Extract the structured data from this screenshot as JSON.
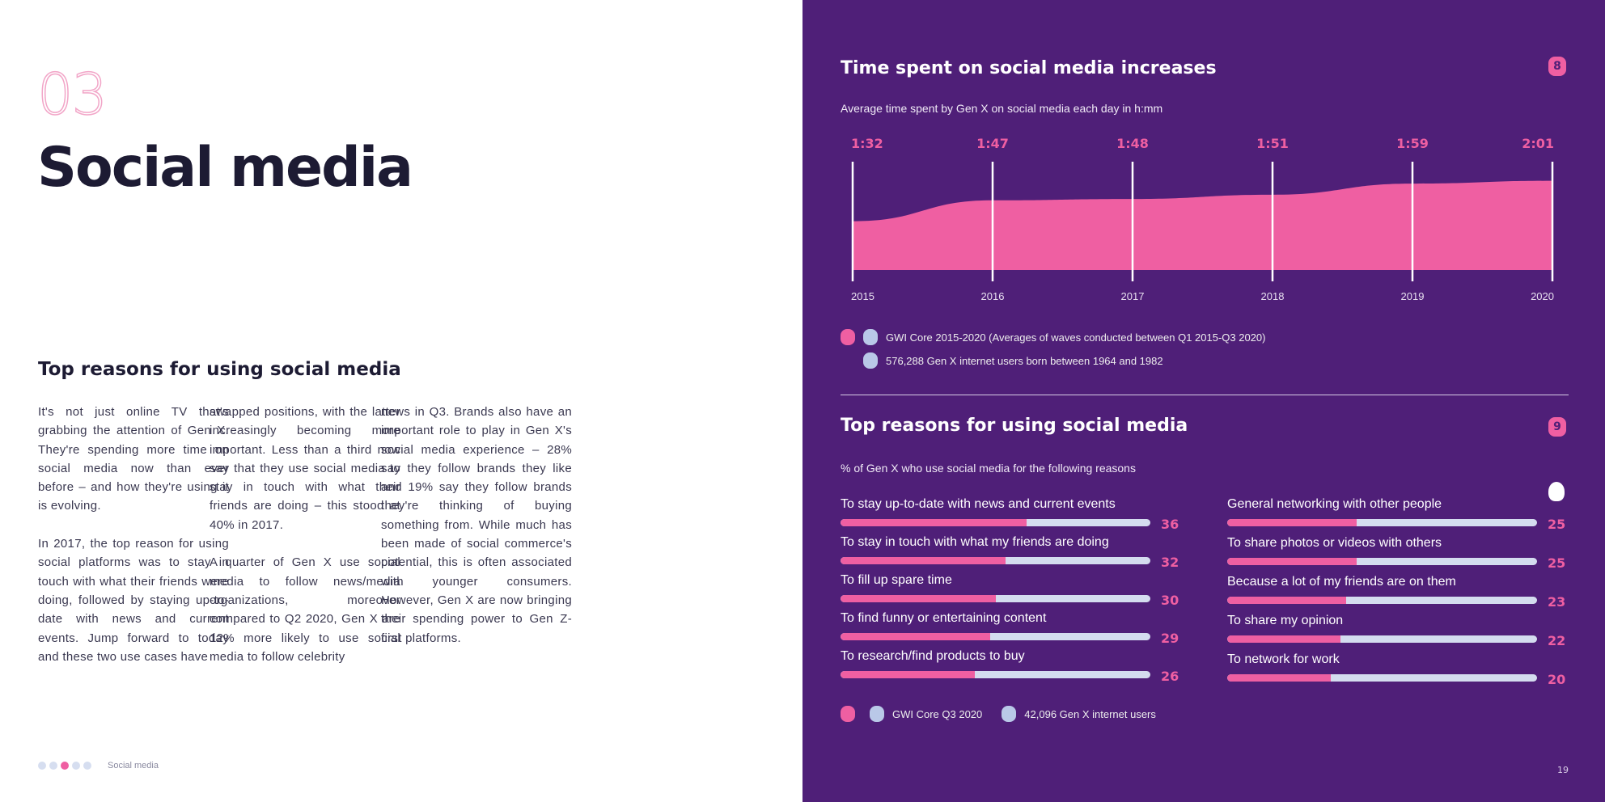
{
  "left": {
    "section_number": "03",
    "title": "Social media",
    "subheading": "Top reasons for using social media",
    "columns": [
      [
        "It's not just online TV that's grabbing the attention of Gen X. They're spending more time on social media now than ever before – and how they're using it is evolving.",
        "In 2017, the top reason for using social platforms was to stay in touch with what their friends were doing, followed by staying up-to-date with news and current events. Jump forward to today and these two use cases have"
      ],
      [
        "swapped positions, with the latter increasingly becoming more important. Less than a third now say that they use social media to stay in touch with what their friends are doing – this stood at 40% in 2017.",
        "A quarter of Gen X use social media to follow news/media organizations, moreover compared to Q2 2020, Gen X are 12% more likely to use social media to follow celebrity"
      ],
      [
        "news in Q3. Brands also have an important role to play in Gen X's social media experience – 28% say they follow brands they like and 19% say they follow brands they're thinking of buying something from. While much has been made of social commerce's potential, this is often associated with younger consumers. However, Gen X are now bringing their spending power to Gen Z-first platforms."
      ]
    ],
    "footer": {
      "label": "Social media",
      "active_dot": 2,
      "dots": 5
    }
  },
  "right": {
    "chart1": {
      "title": "Time spent on social media increases",
      "badge": "8",
      "subtitle": "Average time spent by Gen X on social media each day in h:mm",
      "legend": [
        "GWI Core 2015-2020 (Averages of waves conducted between Q1 2015-Q3 2020)",
        "576,288 Gen X internet users born between 1964 and 1982"
      ]
    },
    "chart2": {
      "title": "Top reasons for using social media",
      "badge": "9",
      "subtitle": "% of Gen X who use social media for the following reasons",
      "legend": [
        "GWI Core Q3 2020",
        "42,096 Gen X internet users"
      ]
    },
    "page_number": "19"
  },
  "colors": {
    "purple": "#4f1f78",
    "pink": "#ef5fa2",
    "track": "#d4dcef"
  },
  "chart_data": [
    {
      "type": "area",
      "title": "Time spent on social media increases",
      "x": [
        "2015",
        "2016",
        "2017",
        "2018",
        "2019",
        "2020"
      ],
      "labels": [
        "1:32",
        "1:47",
        "1:48",
        "1:51",
        "1:59",
        "2:01"
      ],
      "values_minutes": [
        92,
        107,
        108,
        111,
        119,
        121
      ]
    },
    {
      "type": "bar",
      "title": "Top reasons for using social media",
      "max": 60,
      "left": [
        {
          "label": "To stay up-to-date with news and current events",
          "value": 36
        },
        {
          "label": "To stay in touch with what my friends are doing",
          "value": 32
        },
        {
          "label": "To fill up spare time",
          "value": 30
        },
        {
          "label": "To find funny or entertaining content",
          "value": 29
        },
        {
          "label": "To research/find products to buy",
          "value": 26
        }
      ],
      "right": [
        {
          "label": "General networking with other people",
          "value": 25
        },
        {
          "label": "To share photos or videos with others",
          "value": 25
        },
        {
          "label": "Because a lot of my friends are on them",
          "value": 23
        },
        {
          "label": "To share my opinion",
          "value": 22
        },
        {
          "label": "To network for work",
          "value": 20
        }
      ]
    }
  ]
}
